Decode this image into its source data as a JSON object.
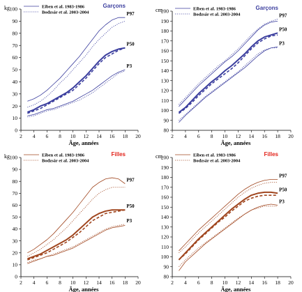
{
  "chart_data": [
    {
      "type": "line",
      "title": "Garçons",
      "title_color": "#3b3e9e",
      "line_color": "#3b3e9e",
      "ylabel": "kg",
      "xlabel": "Âge, années",
      "xlim": [
        2,
        20
      ],
      "ylim": [
        0,
        100
      ],
      "xticks": [
        2,
        4,
        6,
        8,
        10,
        12,
        14,
        16,
        18,
        20
      ],
      "yticks": [
        0,
        10,
        20,
        30,
        40,
        50,
        60,
        70,
        80,
        90,
        100
      ],
      "legend": [
        "Eiben et al. 1983-1986",
        "Bodzsár et al. 2003-2004"
      ],
      "legend_position": "top-left",
      "x": [
        3,
        4,
        5,
        6,
        7,
        8,
        9,
        10,
        11,
        12,
        13,
        14,
        15,
        16,
        17,
        18
      ],
      "series": [
        {
          "name": "P97",
          "source": "Eiben et al. 1983-1986",
          "style": "solid",
          "values": [
            24,
            26,
            29,
            33,
            38,
            43,
            49,
            55,
            61,
            68,
            75,
            82,
            87,
            91,
            93,
            93
          ]
        },
        {
          "name": "P97",
          "source": "Bodzsár et al. 2003-2004",
          "style": "dotted",
          "values": [
            19,
            21,
            24,
            28,
            33,
            39,
            44,
            50,
            56,
            62,
            69,
            75,
            80,
            85,
            88,
            90
          ]
        },
        {
          "name": "P50",
          "source": "Eiben et al. 1983-1986",
          "style": "solid-bold",
          "values": [
            15,
            17,
            20,
            22,
            25,
            28,
            31,
            35,
            40,
            45,
            51,
            57,
            62,
            65,
            67,
            68
          ]
        },
        {
          "name": "P50",
          "source": "Bodzsár et al. 2003-2004",
          "style": "dashed-bold",
          "values": [
            14,
            16,
            18,
            21,
            24,
            27,
            30,
            33,
            38,
            43,
            49,
            55,
            60,
            63,
            66,
            68
          ]
        },
        {
          "name": "P3",
          "source": "Eiben et al. 1983-1986",
          "style": "solid",
          "values": [
            12,
            13,
            15,
            17,
            18,
            20,
            22,
            24,
            27,
            30,
            33,
            37,
            41,
            45,
            48,
            50
          ]
        },
        {
          "name": "P3",
          "source": "Bodzsár et al. 2003-2004",
          "style": "dotted",
          "values": [
            11,
            12,
            14,
            16,
            17,
            19,
            21,
            23,
            25,
            28,
            31,
            35,
            39,
            43,
            47,
            49
          ]
        }
      ]
    },
    {
      "type": "line",
      "title": "Garçons",
      "title_color": "#3b3e9e",
      "line_color": "#3b3e9e",
      "ylabel": "cm",
      "xlabel": "Âge, années",
      "xlim": [
        2,
        20
      ],
      "ylim": [
        80,
        200
      ],
      "xticks": [
        2,
        4,
        6,
        8,
        10,
        12,
        14,
        16,
        18,
        20
      ],
      "yticks": [
        80,
        90,
        100,
        110,
        120,
        130,
        140,
        150,
        160,
        170,
        180,
        190,
        200
      ],
      "legend": [
        "Eiben et al. 1983-1986",
        "Bodzsár et al. 2003-2004"
      ],
      "legend_position": "top-left",
      "x": [
        3,
        4,
        5,
        6,
        7,
        8,
        9,
        10,
        11,
        12,
        13,
        14,
        15,
        16,
        17,
        18
      ],
      "series": [
        {
          "name": "P97",
          "source": "Eiben et al. 1983-1986",
          "style": "solid",
          "values": [
            104,
            111,
            118,
            125,
            131,
            137,
            143,
            149,
            154,
            160,
            167,
            174,
            181,
            186,
            189,
            190
          ]
        },
        {
          "name": "P97",
          "source": "Bodzsár et al. 2003-2004",
          "style": "dotted",
          "values": [
            106,
            113,
            120,
            127,
            133,
            139,
            145,
            150,
            156,
            162,
            169,
            176,
            182,
            187,
            190,
            192
          ]
        },
        {
          "name": "P50",
          "source": "Eiben et al. 1983-1986",
          "style": "solid-bold",
          "values": [
            98,
            103,
            110,
            117,
            123,
            129,
            134,
            140,
            145,
            151,
            157,
            164,
            170,
            174,
            176,
            178
          ]
        },
        {
          "name": "P50",
          "source": "Bodzsár et al. 2003-2004",
          "style": "dashed-bold",
          "values": [
            97,
            102,
            108,
            115,
            121,
            127,
            132,
            137,
            142,
            148,
            155,
            162,
            168,
            172,
            175,
            176
          ]
        },
        {
          "name": "P3",
          "source": "Eiben et al. 1983-1986",
          "style": "solid",
          "values": [
            88,
            95,
            101,
            107,
            113,
            118,
            123,
            128,
            133,
            138,
            143,
            149,
            155,
            160,
            163,
            164
          ]
        },
        {
          "name": "P3",
          "source": "Bodzsár et al. 2003-2004",
          "style": "dotted",
          "values": [
            90,
            96,
            102,
            108,
            114,
            119,
            124,
            129,
            134,
            139,
            145,
            151,
            157,
            161,
            163,
            163
          ]
        }
      ]
    },
    {
      "type": "line",
      "title": "Filles",
      "title_color": "#e2231a",
      "line_color": "#a0461f",
      "ylabel": "kg",
      "xlabel": "Âge, années",
      "xlim": [
        2,
        20
      ],
      "ylim": [
        0,
        100
      ],
      "xticks": [
        2,
        4,
        6,
        8,
        10,
        12,
        14,
        16,
        18,
        20
      ],
      "yticks": [
        0,
        10,
        20,
        30,
        40,
        50,
        60,
        70,
        80,
        90,
        100
      ],
      "legend": [
        "Eiben et al. 1983-1986",
        "Bodzsár et al. 2003-2004"
      ],
      "legend_position": "top-left",
      "x": [
        3,
        4,
        5,
        6,
        7,
        8,
        9,
        10,
        11,
        12,
        13,
        14,
        15,
        16,
        17,
        18
      ],
      "series": [
        {
          "name": "P97",
          "source": "Eiben et al. 1983-1986",
          "style": "solid",
          "values": [
            20,
            23,
            27,
            31,
            36,
            42,
            48,
            54,
            61,
            68,
            75,
            79,
            82,
            83,
            82,
            78
          ]
        },
        {
          "name": "P97",
          "source": "Bodzsár et al. 2003-2004",
          "style": "dotted",
          "values": [
            17,
            20,
            23,
            27,
            31,
            36,
            41,
            47,
            53,
            59,
            65,
            70,
            73,
            75,
            75,
            75
          ]
        },
        {
          "name": "P50",
          "source": "Eiben et al. 1983-1986",
          "style": "solid-bold",
          "values": [
            15,
            17,
            19,
            22,
            25,
            28,
            31,
            35,
            40,
            45,
            50,
            53,
            55,
            56,
            56,
            56
          ]
        },
        {
          "name": "P50",
          "source": "Bodzsár et al. 2003-2004",
          "style": "dashed-bold",
          "values": [
            14,
            16,
            18,
            20,
            23,
            26,
            29,
            33,
            37,
            42,
            47,
            50,
            53,
            54,
            55,
            56
          ]
        },
        {
          "name": "P3",
          "source": "Eiben et al. 1983-1986",
          "style": "solid",
          "values": [
            11,
            13,
            15,
            17,
            18,
            20,
            22,
            24,
            27,
            30,
            33,
            36,
            39,
            41,
            42,
            43
          ]
        },
        {
          "name": "P3",
          "source": "Bodzsár et al. 2003-2004",
          "style": "dotted",
          "values": [
            12,
            14,
            15,
            17,
            19,
            21,
            23,
            25,
            28,
            31,
            34,
            37,
            40,
            42,
            43,
            44
          ]
        }
      ]
    },
    {
      "type": "line",
      "title": "Filles",
      "title_color": "#e2231a",
      "line_color": "#a0461f",
      "ylabel": "cm",
      "xlabel": "Âge, années",
      "xlim": [
        2,
        20
      ],
      "ylim": [
        80,
        200
      ],
      "xticks": [
        2,
        4,
        6,
        8,
        10,
        12,
        14,
        16,
        18,
        20
      ],
      "yticks": [
        80,
        90,
        100,
        110,
        120,
        130,
        140,
        150,
        160,
        170,
        180,
        190,
        200
      ],
      "legend": [
        "Eiben et al. 1983-1986",
        "Bodzsár et al. 2003-2004"
      ],
      "legend_position": "top-left",
      "x": [
        3,
        4,
        5,
        6,
        7,
        8,
        9,
        10,
        11,
        12,
        13,
        14,
        15,
        16,
        17,
        18
      ],
      "series": [
        {
          "name": "P97",
          "source": "Eiben et al. 1983-1986",
          "style": "solid",
          "values": [
            106,
            113,
            120,
            127,
            133,
            139,
            145,
            151,
            157,
            163,
            168,
            172,
            175,
            177,
            178,
            178
          ]
        },
        {
          "name": "P97",
          "source": "Bodzsár et al. 2003-2004",
          "style": "dotted",
          "values": [
            104,
            110,
            117,
            124,
            130,
            136,
            142,
            148,
            154,
            160,
            165,
            169,
            172,
            174,
            175,
            175
          ]
        },
        {
          "name": "P50",
          "source": "Eiben et al. 1983-1986",
          "style": "solid-bold",
          "values": [
            97,
            104,
            111,
            118,
            124,
            130,
            136,
            142,
            148,
            153,
            158,
            162,
            164,
            165,
            165,
            164
          ]
        },
        {
          "name": "P50",
          "source": "Bodzsár et al. 2003-2004",
          "style": "dashed-bold",
          "values": [
            97,
            103,
            110,
            117,
            123,
            129,
            135,
            140,
            146,
            151,
            156,
            159,
            161,
            162,
            162,
            162
          ]
        },
        {
          "name": "P3",
          "source": "Eiben et al. 1983-1986",
          "style": "solid",
          "values": [
            86,
            95,
            101,
            107,
            113,
            118,
            123,
            128,
            133,
            138,
            143,
            147,
            150,
            152,
            153,
            152
          ]
        },
        {
          "name": "P3",
          "source": "Bodzsár et al. 2003-2004",
          "style": "dotted",
          "values": [
            90,
            97,
            103,
            109,
            114,
            119,
            124,
            129,
            134,
            139,
            143,
            147,
            149,
            151,
            151,
            151
          ]
        }
      ]
    }
  ]
}
